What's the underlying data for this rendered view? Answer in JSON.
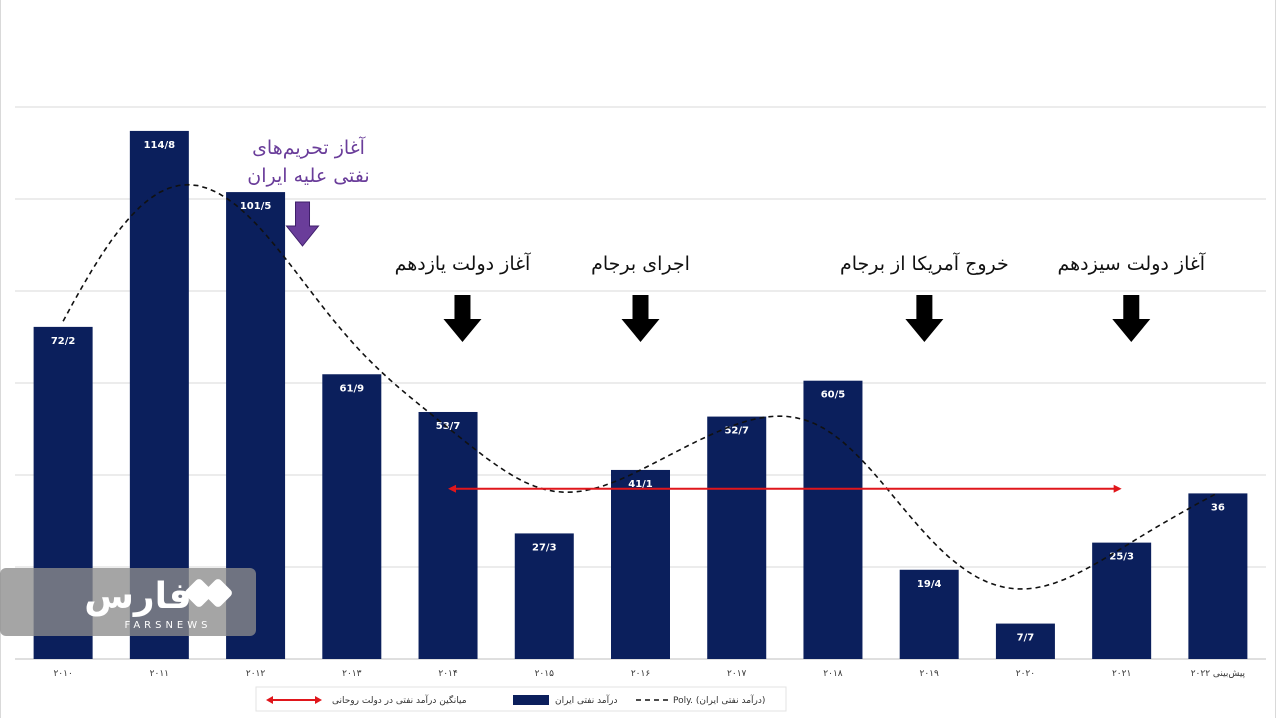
{
  "chart_data": {
    "type": "bar",
    "categories": [
      "۲۰۱۰",
      "۲۰۱۱",
      "۲۰۱۲",
      "۲۰۱۳",
      "۲۰۱۴",
      "۲۰۱۵",
      "۲۰۱۶",
      "۲۰۱۷",
      "۲۰۱۸",
      "۲۰۱۹",
      "۲۰۲۰",
      "۲۰۲۱",
      "پیش‌بینی ۲۰۲۲"
    ],
    "values": [
      72.2,
      114.8,
      101.5,
      61.9,
      53.7,
      27.3,
      41.1,
      52.7,
      60.5,
      19.4,
      7.7,
      25.3,
      36
    ],
    "value_labels": [
      "72/2",
      "114/8",
      "101/5",
      "61/9",
      "53/7",
      "27/3",
      "41/1",
      "52/7",
      "60/5",
      "19/4",
      "7/7",
      "25/3",
      "36"
    ],
    "ylim": [
      0,
      120
    ],
    "ygrid_step": 20,
    "grid": true,
    "legend_position": "bottom",
    "average_line": {
      "from_index": 4,
      "to_index": 11,
      "value": 37
    },
    "legend": {
      "average_label": "میانگین درآمد نفتی در دولت روحانی",
      "bars_label": "درآمد نفتی ایران",
      "trend_label": "Poly. (درآمد نفتی ایران)"
    },
    "annotations": [
      {
        "lines": [
          "آغاز تحریم‌های",
          "نفتی علیه ایران"
        ],
        "index": 2.55,
        "color": "#6a3d9a"
      },
      {
        "lines": [
          "آغاز دولت یازدهم"
        ],
        "index": 4.15,
        "color": "#111111"
      },
      {
        "lines": [
          "اجرای برجام"
        ],
        "index": 6.0,
        "color": "#111111"
      },
      {
        "lines": [
          "خروج آمریکا از برجام"
        ],
        "index": 8.95,
        "color": "#111111"
      },
      {
        "lines": [
          "آغاز دولت سیزدهم"
        ],
        "index": 11.1,
        "color": "#111111"
      }
    ],
    "colors": {
      "bars": "#0b1f5c",
      "average_line": "#e0161b",
      "trend": "#111111",
      "down_arrow": "#000000",
      "purple_arrow": "#6a3d9a"
    }
  },
  "watermark": {
    "name": "فارس",
    "subtitle": "FARSNEWS"
  }
}
